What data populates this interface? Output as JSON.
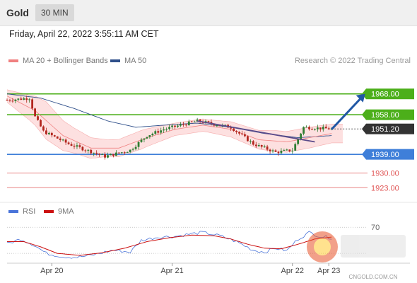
{
  "header": {
    "instrument": "Gold",
    "timeframe": "30 MIN"
  },
  "timestamp": "Friday, April 22, 2022 3:55:11 AM CET",
  "credit": "Research © 2022 Trading Central",
  "colors": {
    "bb_line": "#f08080",
    "bb_fill": "#fde0e0",
    "ma50": "#2f4f8a",
    "candle_up": "#2e7d32",
    "candle_down": "#b3261e",
    "resistance": "#4caf1a",
    "support_blue": "#3f7fd9",
    "support_red": "#e05555",
    "current": "#333333",
    "rsi": "#4a74d9",
    "rsi_ma": "#cc1111"
  },
  "watermark": {
    "site": "CNGOLD.COM.CN"
  },
  "chart_data": [
    {
      "type": "candlestick",
      "title": "Gold",
      "timeframe": "30 MIN",
      "legend": [
        {
          "name": "MA 20 + Bollinger Bands",
          "color": "#f08080"
        },
        {
          "name": "MA 50",
          "color": "#2f4f8a"
        }
      ],
      "legend_position": "top-left",
      "ylim": [
        1918,
        1973
      ],
      "xlim": [
        0,
        120
      ],
      "x_ticks": [
        {
          "x": 16,
          "label": "Apr 20"
        },
        {
          "x": 59,
          "label": "Apr 21"
        },
        {
          "x": 102,
          "label": "Apr 22"
        },
        {
          "x": 115,
          "label": "Apr 23"
        }
      ],
      "levels": [
        {
          "label": "1968.00",
          "value": 1968.0,
          "kind": "resistance"
        },
        {
          "label": "1958.00",
          "value": 1958.0,
          "kind": "resistance"
        },
        {
          "label": "1951.20",
          "value": 1951.2,
          "kind": "current"
        },
        {
          "label": "1939.00",
          "value": 1939.0,
          "kind": "support"
        },
        {
          "label": "1930.00",
          "value": 1930.0,
          "kind": "support_minor"
        },
        {
          "label": "1923.00",
          "value": 1923.0,
          "kind": "support_minor"
        }
      ],
      "close_anchors": [
        [
          0,
          1965
        ],
        [
          8,
          1966
        ],
        [
          10,
          1957
        ],
        [
          13,
          1950
        ],
        [
          22,
          1944
        ],
        [
          35,
          1938
        ],
        [
          44,
          1941
        ],
        [
          50,
          1948
        ],
        [
          56,
          1951
        ],
        [
          68,
          1955
        ],
        [
          80,
          1952
        ],
        [
          88,
          1944
        ],
        [
          96,
          1940
        ],
        [
          102,
          1941
        ],
        [
          106,
          1952
        ],
        [
          116,
          1951.2
        ]
      ],
      "ma50_anchors": [
        [
          0,
          1968
        ],
        [
          12,
          1966
        ],
        [
          24,
          1961
        ],
        [
          36,
          1955
        ],
        [
          46,
          1952
        ],
        [
          56,
          1953
        ],
        [
          68,
          1954
        ],
        [
          80,
          1952
        ],
        [
          92,
          1949
        ],
        [
          104,
          1947
        ],
        [
          116,
          1948
        ]
      ],
      "bb_middle_anchors": [
        [
          0,
          1967
        ],
        [
          10,
          1960
        ],
        [
          20,
          1948
        ],
        [
          30,
          1942
        ],
        [
          40,
          1942
        ],
        [
          50,
          1947
        ],
        [
          60,
          1951
        ],
        [
          70,
          1953
        ],
        [
          80,
          1951
        ],
        [
          90,
          1946
        ],
        [
          100,
          1945
        ],
        [
          108,
          1947
        ],
        [
          116,
          1949
        ]
      ],
      "bb_width_anchors": [
        [
          0,
          3
        ],
        [
          8,
          6
        ],
        [
          14,
          9
        ],
        [
          24,
          6
        ],
        [
          36,
          4
        ],
        [
          48,
          4.5
        ],
        [
          60,
          3
        ],
        [
          72,
          3
        ],
        [
          84,
          4
        ],
        [
          96,
          5
        ],
        [
          108,
          5
        ],
        [
          116,
          4.5
        ]
      ],
      "trendline": {
        "from": [
          68,
          1955
        ],
        "to": [
          110,
          1945
        ]
      },
      "forecast_arrow": {
        "from": [
          116,
          1951
        ],
        "to": [
          128,
          1968
        ]
      }
    },
    {
      "type": "line",
      "legend": [
        {
          "name": "RSI",
          "color": "#4a74d9"
        },
        {
          "name": "9MA",
          "color": "#cc1111"
        }
      ],
      "ylim": [
        15,
        80
      ],
      "y_ticks": [
        70
      ],
      "reference_lines": [
        70,
        30
      ],
      "rsi_anchors": [
        [
          0,
          45
        ],
        [
          5,
          52
        ],
        [
          10,
          42
        ],
        [
          14,
          30
        ],
        [
          20,
          25
        ],
        [
          25,
          24
        ],
        [
          30,
          27
        ],
        [
          38,
          35
        ],
        [
          44,
          32
        ],
        [
          48,
          50
        ],
        [
          54,
          55
        ],
        [
          60,
          56
        ],
        [
          66,
          60
        ],
        [
          70,
          62
        ],
        [
          76,
          57
        ],
        [
          82,
          48
        ],
        [
          88,
          35
        ],
        [
          92,
          32
        ],
        [
          96,
          38
        ],
        [
          100,
          34
        ],
        [
          104,
          52
        ],
        [
          108,
          62
        ],
        [
          112,
          56
        ],
        [
          116,
          54
        ]
      ],
      "ma_anchors": [
        [
          0,
          48
        ],
        [
          6,
          48
        ],
        [
          12,
          40
        ],
        [
          18,
          30
        ],
        [
          26,
          27
        ],
        [
          34,
          31
        ],
        [
          42,
          38
        ],
        [
          50,
          48
        ],
        [
          58,
          54
        ],
        [
          66,
          58
        ],
        [
          74,
          57
        ],
        [
          80,
          52
        ],
        [
          86,
          44
        ],
        [
          92,
          38
        ],
        [
          98,
          37
        ],
        [
          104,
          44
        ],
        [
          110,
          52
        ],
        [
          116,
          55
        ]
      ]
    }
  ]
}
